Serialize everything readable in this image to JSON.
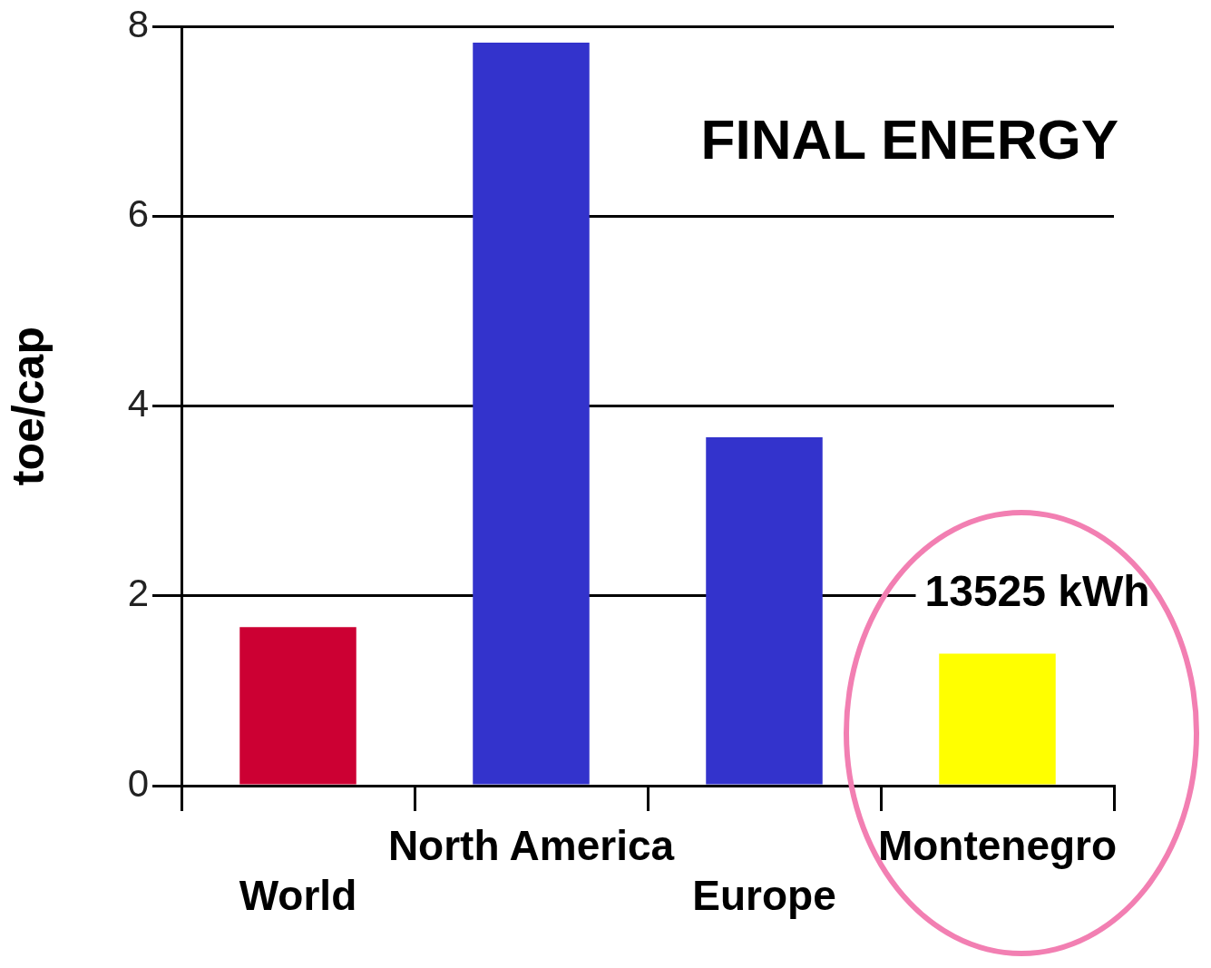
{
  "chart_data": {
    "type": "bar",
    "title": "FINAL ENERGY",
    "ylabel": "toe/cap",
    "categories": [
      "World",
      "North America",
      "Europe",
      "Montenegro"
    ],
    "values": [
      1.67,
      7.83,
      3.67,
      1.39
    ],
    "colors": [
      "#cc0033",
      "#3333cc",
      "#3333cc",
      "#ffff00"
    ],
    "ylim": [
      0,
      8
    ],
    "yticks": [
      0,
      2,
      4,
      6,
      8
    ],
    "grid": "y",
    "legend": false,
    "annotations": [
      "13525 kWh"
    ]
  }
}
